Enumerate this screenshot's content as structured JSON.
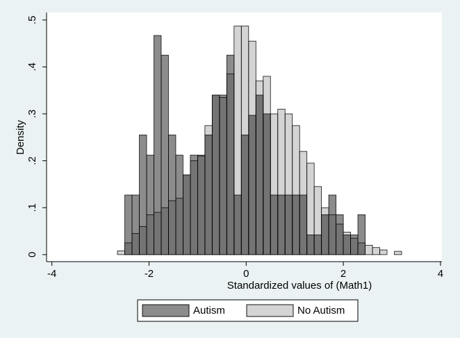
{
  "chart_data": {
    "type": "histogram",
    "xlabel": "Standardized values of (Math1)",
    "ylabel": "Density",
    "bins": [
      -2.65,
      -2.5,
      -2.35,
      -2.2,
      -2.05,
      -1.9,
      -1.75,
      -1.6,
      -1.45,
      -1.3,
      -1.15,
      -1.0,
      -0.85,
      -0.7,
      -0.55,
      -0.4,
      -0.25,
      -0.1,
      0.05,
      0.2,
      0.35,
      0.5,
      0.65,
      0.8,
      0.95,
      1.1,
      1.25,
      1.4,
      1.55,
      1.7,
      1.85,
      2.0,
      2.15,
      2.3,
      2.45,
      2.6,
      2.75,
      2.9,
      3.05,
      3.2
    ],
    "series": [
      {
        "name": "Autism",
        "color": "#8c8c8c",
        "values": [
          0,
          0.127,
          0.127,
          0.255,
          0.212,
          0.467,
          0.425,
          0.255,
          0.212,
          0.17,
          0.212,
          0.212,
          0.255,
          0.34,
          0.34,
          0.425,
          0.127,
          0.255,
          0.297,
          0.34,
          0.3,
          0.127,
          0.127,
          0.127,
          0.127,
          0.127,
          0.042,
          0.042,
          0.085,
          0.127,
          0.085,
          0.042,
          0.042,
          0.085,
          0,
          0,
          0,
          0,
          0
        ]
      },
      {
        "name": "No Autism",
        "color": "#d4d4d4",
        "values": [
          0.008,
          0.025,
          0.045,
          0.06,
          0.085,
          0.09,
          0.1,
          0.115,
          0.12,
          0.17,
          0.2,
          0.21,
          0.275,
          0.34,
          0.335,
          0.385,
          0.487,
          0.487,
          0.455,
          0.37,
          0.38,
          0.3,
          0.31,
          0.3,
          0.275,
          0.22,
          0.195,
          0.145,
          0.1,
          0.085,
          0.065,
          0.048,
          0.035,
          0.025,
          0.02,
          0.015,
          0.01,
          0,
          0.007
        ]
      }
    ],
    "xlim": [
      -4.11,
      4.03
    ],
    "ylim": [
      -0.015,
      0.516
    ],
    "xticks": [
      -4,
      -2,
      0,
      2,
      4
    ],
    "yticks": [
      0,
      {
        "value": 0.1,
        "label": ".1"
      },
      {
        "value": 0.2,
        "label": ".2"
      },
      {
        "value": 0.3,
        "label": ".3"
      },
      {
        "value": 0.4,
        "label": ".4"
      },
      {
        "value": 0.5,
        "label": ".5"
      }
    ],
    "legend": "bottom"
  }
}
